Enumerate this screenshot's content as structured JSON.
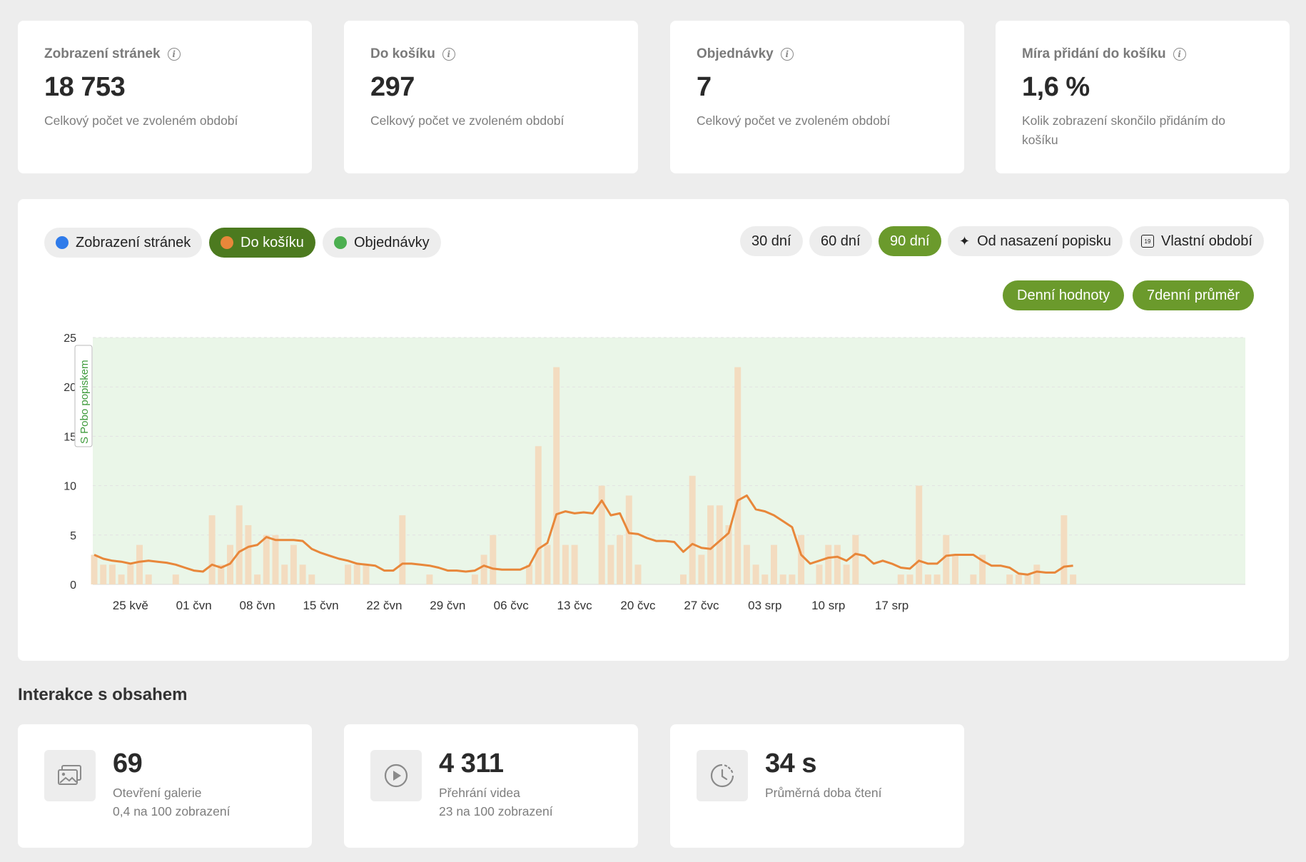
{
  "stats": [
    {
      "label": "Zobrazení stránek",
      "value": "18 753",
      "desc": "Celkový počet ve zvoleném období"
    },
    {
      "label": "Do košíku",
      "value": "297",
      "desc": "Celkový počet ve zvoleném období"
    },
    {
      "label": "Objednávky",
      "value": "7",
      "desc": "Celkový počet ve zvoleném období"
    },
    {
      "label": "Míra přidání do košíku",
      "value": "1,6 %",
      "desc": "Kolik zobrazení skončilo přidáním do košíku"
    }
  ],
  "series_toggles": [
    {
      "label": "Zobrazení stránek",
      "color": "#2f7bea",
      "active": false
    },
    {
      "label": "Do košíku",
      "color": "#e8873a",
      "active": true
    },
    {
      "label": "Objednávky",
      "color": "#4caf50",
      "active": false
    }
  ],
  "range_buttons": [
    {
      "label": "30 dní",
      "active": false
    },
    {
      "label": "60 dní",
      "active": false
    },
    {
      "label": "90 dní",
      "active": true
    },
    {
      "label": "Od nasazení popisku",
      "icon": "sparkle-icon",
      "active": false
    },
    {
      "label": "Vlastní období",
      "icon": "calendar-icon",
      "calendar_day": "19",
      "active": false
    }
  ],
  "mode_buttons": [
    {
      "label": "Denní hodnoty"
    },
    {
      "label": "7denní průměr"
    }
  ],
  "chart_data": {
    "type": "bar",
    "series": [
      {
        "name": "Do košíku",
        "kind": "bar",
        "color": "#f3dcc0",
        "values": [
          3,
          2,
          2,
          1,
          2,
          4,
          1,
          0,
          0,
          1,
          0,
          0,
          0,
          7,
          2,
          4,
          8,
          6,
          1,
          5,
          5,
          2,
          4,
          2,
          1,
          0,
          0,
          0,
          2,
          2,
          2,
          0,
          0,
          0,
          7,
          0,
          0,
          1,
          0,
          0,
          0,
          0,
          1,
          3,
          5,
          0,
          0,
          0,
          2,
          14,
          4,
          22,
          4,
          4,
          0,
          0,
          10,
          4,
          5,
          9,
          2,
          0,
          0,
          0,
          0,
          1,
          11,
          3,
          8,
          8,
          6,
          22,
          4,
          2,
          1,
          4,
          1,
          1,
          5,
          0,
          2,
          4,
          4,
          2,
          5,
          0,
          0,
          0,
          0,
          1,
          1,
          10,
          1,
          1,
          5,
          3,
          0,
          1,
          3,
          0,
          0,
          1,
          1,
          1,
          2,
          0,
          0,
          7,
          1
        ]
      },
      {
        "name": "Do košíku",
        "kind": "line",
        "color": "#e8873a",
        "values": [
          3.0,
          2.6,
          2.4,
          2.3,
          2.1,
          2.3,
          2.4,
          2.3,
          2.2,
          2.0,
          1.7,
          1.4,
          1.3,
          2.0,
          1.7,
          2.1,
          3.3,
          3.8,
          4.0,
          4.8,
          4.5,
          4.5,
          4.5,
          4.4,
          3.6,
          3.2,
          2.9,
          2.6,
          2.4,
          2.1,
          2.0,
          1.9,
          1.4,
          1.4,
          2.1,
          2.1,
          2.0,
          1.9,
          1.7,
          1.4,
          1.4,
          1.3,
          1.4,
          1.9,
          1.6,
          1.5,
          1.5,
          1.5,
          1.9,
          3.6,
          4.2,
          7.1,
          7.4,
          7.2,
          7.3,
          7.2,
          8.5,
          7.0,
          7.2,
          5.2,
          5.1,
          4.7,
          4.4,
          4.4,
          4.3,
          3.3,
          4.1,
          3.7,
          3.6,
          4.4,
          5.2,
          8.5,
          9.0,
          7.6,
          7.4,
          7.0,
          6.4,
          5.8,
          3.0,
          2.1,
          2.4,
          2.7,
          2.8,
          2.4,
          3.1,
          2.9,
          2.1,
          2.4,
          2.1,
          1.7,
          1.6,
          2.4,
          2.1,
          2.1,
          2.9,
          3.0,
          3.0,
          3.0,
          2.4,
          1.9,
          1.9,
          1.7,
          1.1,
          1.0,
          1.3,
          1.2,
          1.2,
          1.8,
          1.9
        ]
      }
    ],
    "x_tick_labels": [
      "25 kvě",
      "01 čvn",
      "08 čvn",
      "15 čvn",
      "22 čvn",
      "29 čvn",
      "06 čvc",
      "13 čvc",
      "20 čvc",
      "27 čvc",
      "03 srp",
      "10 srp",
      "17 srp"
    ],
    "y_ticks": [
      0,
      5,
      10,
      15,
      20,
      25
    ],
    "ylim": [
      0,
      25
    ],
    "annotation": "S Pobo popiskem",
    "highlight_color": "#eaf6e8"
  },
  "section_title": "Interakce s obsahem",
  "interactions": [
    {
      "icon": "gallery-icon",
      "value": "69",
      "label": "Otevření galerie",
      "sub": "0,4 na 100 zobrazení"
    },
    {
      "icon": "play-icon",
      "value": "4 311",
      "label": "Přehrání videa",
      "sub": "23 na 100 zobrazení"
    },
    {
      "icon": "clock-icon",
      "value": "34 s",
      "label": "Průměrná doba čtení",
      "sub": ""
    }
  ]
}
